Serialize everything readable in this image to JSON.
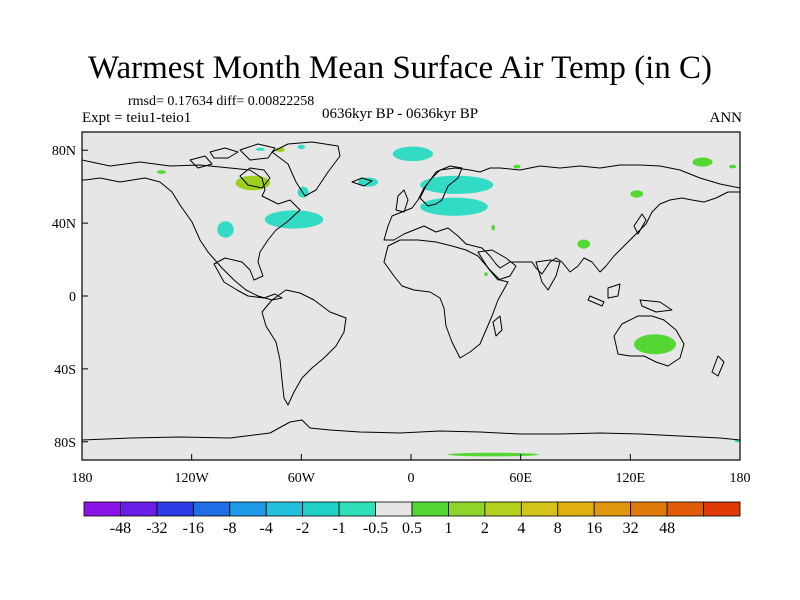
{
  "title": "Warmest Month Mean Surface Air Temp (in C)",
  "stats": "rmsd= 0.17634 diff= 0.00822258",
  "experiment": "Expt = teiu1-teio1",
  "period": "0636kyr BP - 0636kyr BP",
  "season": "ANN",
  "map": {
    "lon_range": [
      -180,
      180
    ],
    "lat_range": [
      -90,
      90
    ],
    "lat_ticks": [
      {
        "value": 80,
        "label": "80N"
      },
      {
        "value": 40,
        "label": "40N"
      },
      {
        "value": 0,
        "label": "0"
      },
      {
        "value": -40,
        "label": "40S"
      },
      {
        "value": -80,
        "label": "80S"
      }
    ],
    "lon_ticks": [
      {
        "value": -180,
        "label": "180"
      },
      {
        "value": -120,
        "label": "120W"
      },
      {
        "value": -60,
        "label": "60W"
      },
      {
        "value": 0,
        "label": "0"
      },
      {
        "value": 60,
        "label": "60E"
      },
      {
        "value": 120,
        "label": "120E"
      },
      {
        "value": 180,
        "label": "180"
      }
    ],
    "colors": {
      "background": "#e6e6e6",
      "coast": "#000000",
      "cool": "#32dcc4",
      "warm": "#55d733",
      "warm2": "#9fcf1e"
    },
    "anomaly_regions": [
      {
        "name": "ellesmere-warm",
        "category": "warm2",
        "lon": [
          -74,
          -69
        ],
        "lat": [
          81.5,
          79
        ]
      },
      {
        "name": "arctic-archipelago-cool",
        "category": "cool",
        "lon": [
          -85,
          -80
        ],
        "lat": [
          81,
          80
        ]
      },
      {
        "name": "greenland-north-cool",
        "category": "cool",
        "lon": [
          -62,
          -58
        ],
        "lat": [
          83,
          80.5
        ]
      },
      {
        "name": "yukon-warm",
        "category": "warm",
        "lon": [
          -139,
          -134
        ],
        "lat": [
          69,
          67
        ]
      },
      {
        "name": "hudson-bay-warm",
        "category": "warm2",
        "lon": [
          -96,
          -77
        ],
        "lat": [
          66,
          58
        ]
      },
      {
        "name": "labrador-cool",
        "category": "cool",
        "lon": [
          -62,
          -56
        ],
        "lat": [
          60,
          54
        ]
      },
      {
        "name": "great-plains-cool",
        "category": "cool",
        "lon": [
          -106,
          -97
        ],
        "lat": [
          41,
          32
        ]
      },
      {
        "name": "north-atlantic-cool",
        "category": "cool",
        "lon": [
          -80,
          -48
        ],
        "lat": [
          47,
          37
        ]
      },
      {
        "name": "nordic-sea-cool",
        "category": "cool",
        "lon": [
          -10,
          12
        ],
        "lat": [
          82,
          74
        ]
      },
      {
        "name": "iceland-cool",
        "category": "cool",
        "lon": [
          -29,
          -18
        ],
        "lat": [
          65,
          60
        ]
      },
      {
        "name": "fennoscandia-cool",
        "category": "cool",
        "lon": [
          5,
          45
        ],
        "lat": [
          66,
          56
        ]
      },
      {
        "name": "europe-cool",
        "category": "cool",
        "lon": [
          5,
          42
        ],
        "lat": [
          54,
          44
        ]
      },
      {
        "name": "urals-warm",
        "category": "warm",
        "lon": [
          56,
          60
        ],
        "lat": [
          72,
          70
        ]
      },
      {
        "name": "siberia-warm",
        "category": "warm",
        "lon": [
          120,
          127
        ],
        "lat": [
          58,
          54
        ]
      },
      {
        "name": "east-siberia-warm",
        "category": "warm",
        "lon": [
          154,
          165
        ],
        "lat": [
          76,
          71
        ]
      },
      {
        "name": "chukotka-warm",
        "category": "warm",
        "lon": [
          174,
          178
        ],
        "lat": [
          72,
          70
        ]
      },
      {
        "name": "china-warm",
        "category": "warm",
        "lon": [
          91,
          98
        ],
        "lat": [
          31,
          26
        ]
      },
      {
        "name": "arabia-warm",
        "category": "warm",
        "lon": [
          44,
          46
        ],
        "lat": [
          39,
          36
        ]
      },
      {
        "name": "east-africa-warm",
        "category": "warm",
        "lon": [
          40,
          42
        ],
        "lat": [
          13,
          11
        ]
      },
      {
        "name": "australia-warm",
        "category": "warm",
        "lon": [
          122,
          145
        ],
        "lat": [
          -21,
          -32
        ]
      },
      {
        "name": "antarctic-warm",
        "category": "warm",
        "lon": [
          20,
          70
        ],
        "lat": [
          -86,
          -88
        ]
      },
      {
        "name": "antarctic-cool",
        "category": "cool",
        "lon": [
          177,
          180
        ],
        "lat": [
          -79,
          -80
        ]
      }
    ]
  },
  "colorbar": {
    "colors": [
      "#8a14e6",
      "#6a1ee6",
      "#2b3ce6",
      "#1f6ee6",
      "#1e9ae6",
      "#22c0dc",
      "#22d2c8",
      "#30e0b8",
      "#e6e6e6",
      "#55d733",
      "#8fd42a",
      "#b4cf1e",
      "#d4c41a",
      "#e0b012",
      "#e0960e",
      "#e07a0a",
      "#e05a08",
      "#e03a06"
    ],
    "labels": [
      "-48",
      "-32",
      "-16",
      "-8",
      "-4",
      "-2",
      "-1",
      "-0.5",
      "0.5",
      "1",
      "2",
      "4",
      "8",
      "16",
      "32",
      "48"
    ]
  }
}
